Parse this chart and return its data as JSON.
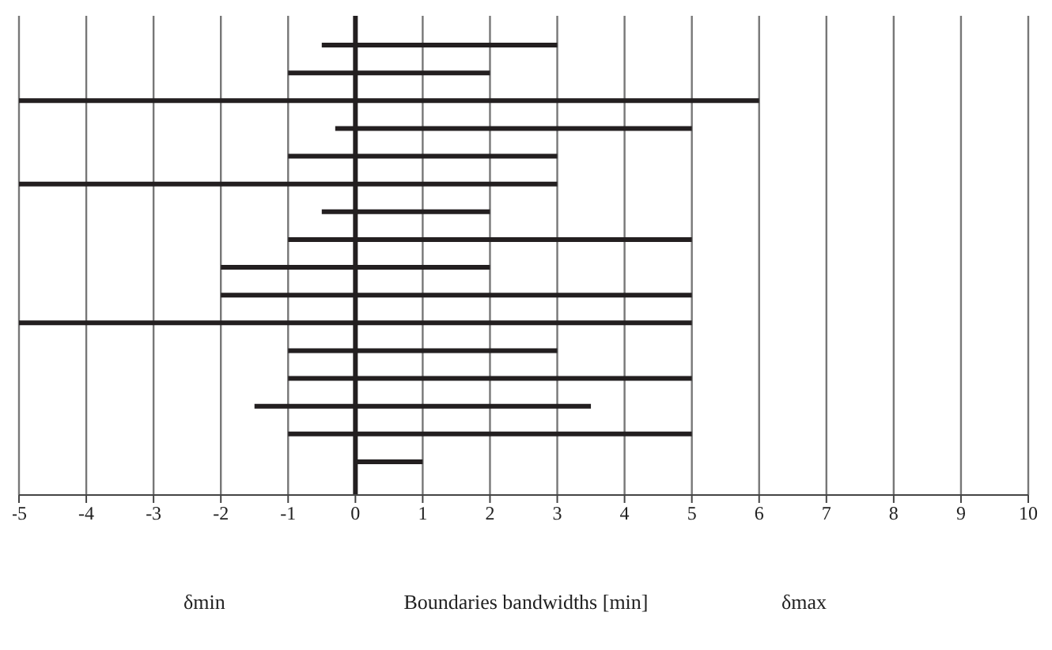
{
  "chart_data": {
    "type": "bar",
    "orientation": "horizontal",
    "xlabel": "Boundaries bandwidths [min]",
    "annotations": [
      "δmin",
      "δmax"
    ],
    "categories": [
      null,
      null,
      null,
      null,
      null,
      null,
      null,
      null,
      null,
      null,
      null,
      null,
      null,
      null,
      null,
      null
    ],
    "base": [
      -0.5,
      -1,
      -5,
      -0.3,
      -1,
      -5,
      -0.5,
      -1,
      -2,
      -2,
      -5,
      -1,
      -1,
      -1.5,
      -1,
      0
    ],
    "values": [
      3.5,
      3,
      11,
      5.3,
      4,
      8,
      2.5,
      6,
      4,
      7,
      10,
      4,
      6,
      5,
      6,
      1
    ],
    "color": "#231f20",
    "xlim": [
      -5,
      10
    ],
    "xticks": [
      -5,
      -4,
      -3,
      -2,
      -1,
      0,
      1,
      2,
      3,
      4,
      5,
      6,
      7,
      8,
      9,
      10
    ],
    "grid": "x",
    "tick_labels": "x",
    "ref_lines": [
      {
        "axis": "x",
        "value": 0,
        "color": "#231f20"
      }
    ]
  }
}
